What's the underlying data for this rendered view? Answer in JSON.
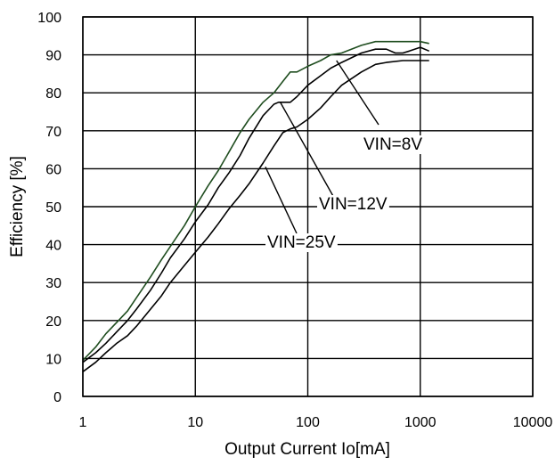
{
  "chart_data": {
    "type": "line",
    "title": "",
    "xlabel": "Output Current Io[mA]",
    "ylabel": "Efficiency [%]",
    "x_scale": "log",
    "xlim": [
      1,
      10000
    ],
    "ylim": [
      0,
      100
    ],
    "x_ticks": [
      "1",
      "10",
      "100",
      "1000",
      "10000"
    ],
    "y_ticks": [
      "0",
      "10",
      "20",
      "30",
      "40",
      "50",
      "60",
      "70",
      "80",
      "90",
      "100"
    ],
    "grid": true,
    "legend": "none",
    "series": [
      {
        "name": "VIN=8V",
        "color": "#1f4d1f",
        "x": [
          1,
          1.3,
          1.6,
          2,
          2.5,
          3,
          4,
          5,
          6,
          8,
          10,
          13,
          16,
          20,
          25,
          30,
          40,
          50,
          60,
          70,
          80,
          100,
          130,
          160,
          200,
          300,
          400,
          500,
          700,
          1000,
          1200
        ],
        "y": [
          9.5,
          13,
          16.5,
          19.5,
          22.5,
          26,
          31.5,
          36,
          39.5,
          45,
          50,
          55.5,
          59.5,
          64.5,
          69.5,
          73,
          77.5,
          80,
          83,
          85.5,
          85.5,
          87,
          88.5,
          90,
          90.5,
          92.5,
          93.5,
          93.5,
          93.5,
          93.5,
          93
        ]
      },
      {
        "name": "VIN=12V",
        "color": "#000000",
        "x": [
          1,
          1.3,
          1.6,
          2,
          2.5,
          3,
          4,
          5,
          6,
          8,
          10,
          13,
          16,
          20,
          25,
          30,
          40,
          50,
          55,
          60,
          70,
          80,
          100,
          130,
          160,
          200,
          300,
          400,
          500,
          600,
          700,
          800,
          1000,
          1200
        ],
        "y": [
          9,
          11.5,
          14,
          17,
          20,
          23,
          28,
          32.5,
          36.5,
          41.5,
          46,
          50.5,
          55,
          59,
          63.5,
          68,
          74,
          77,
          77.5,
          77.5,
          77.5,
          79,
          82,
          84.5,
          86.5,
          88,
          90.5,
          91.5,
          91.5,
          90.5,
          90.5,
          91,
          92,
          91
        ]
      },
      {
        "name": "VIN=25V",
        "color": "#000000",
        "x": [
          1,
          1.3,
          1.6,
          2,
          2.5,
          3,
          4,
          5,
          6,
          8,
          10,
          13,
          16,
          20,
          25,
          30,
          40,
          50,
          60,
          70,
          80,
          100,
          130,
          160,
          200,
          300,
          400,
          500,
          700,
          1000,
          1200
        ],
        "y": [
          6.5,
          9,
          11.5,
          14,
          16,
          18.5,
          23,
          26.5,
          30,
          34.5,
          38,
          42,
          45.5,
          49.5,
          53,
          56,
          61.5,
          66,
          69.5,
          70.5,
          71,
          73,
          76,
          79,
          82,
          85.5,
          87.5,
          88,
          88.5,
          88.5,
          88.5
        ]
      }
    ],
    "annotations": [
      {
        "text": "VIN=8V",
        "target_series": 0
      },
      {
        "text": "VIN=12V",
        "target_series": 1
      },
      {
        "text": "VIN=25V",
        "target_series": 2
      }
    ]
  }
}
